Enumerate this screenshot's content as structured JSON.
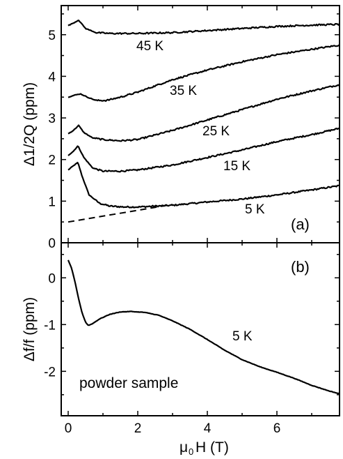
{
  "chart_data": [
    {
      "panel": "(a)",
      "type": "line",
      "xlabel": "",
      "ylabel": "Δ1/2Q (ppm)",
      "xlim": [
        -0.2,
        7.8
      ],
      "ylim": [
        0,
        5.7
      ],
      "x_ticks": [
        0,
        2,
        4,
        6
      ],
      "y_ticks": [
        0,
        1,
        2,
        3,
        4,
        5
      ],
      "series": [
        {
          "name": "5 K",
          "x": [
            0,
            0.15,
            0.28,
            0.4,
            0.6,
            0.9,
            1.2,
            1.6,
            2,
            3,
            4,
            5,
            6,
            7,
            7.8
          ],
          "y": [
            1.75,
            1.85,
            1.93,
            1.6,
            1.15,
            0.95,
            0.88,
            0.86,
            0.86,
            0.9,
            0.98,
            1.05,
            1.15,
            1.27,
            1.37
          ]
        },
        {
          "name": "15 K",
          "x": [
            0,
            0.15,
            0.28,
            0.45,
            0.7,
            1,
            1.5,
            2,
            3,
            4,
            5,
            6,
            7,
            7.8
          ],
          "y": [
            2.1,
            2.2,
            2.33,
            2.05,
            1.8,
            1.72,
            1.72,
            1.75,
            1.87,
            2.05,
            2.23,
            2.43,
            2.6,
            2.75
          ]
        },
        {
          "name": "25 K",
          "x": [
            0,
            0.15,
            0.3,
            0.45,
            0.7,
            1,
            1.5,
            2,
            3,
            4,
            5,
            6,
            7,
            7.8
          ],
          "y": [
            2.62,
            2.7,
            2.82,
            2.65,
            2.52,
            2.48,
            2.45,
            2.48,
            2.7,
            2.95,
            3.2,
            3.45,
            3.65,
            3.8
          ]
        },
        {
          "name": "35 K",
          "x": [
            0,
            0.2,
            0.35,
            0.55,
            0.8,
            1.1,
            1.5,
            2,
            3,
            4,
            5,
            6,
            7,
            7.8
          ],
          "y": [
            3.5,
            3.55,
            3.58,
            3.5,
            3.42,
            3.42,
            3.5,
            3.62,
            3.92,
            4.15,
            4.35,
            4.52,
            4.65,
            4.75
          ]
        },
        {
          "name": "45 K",
          "x": [
            0,
            0.15,
            0.3,
            0.5,
            0.8,
            1.2,
            2,
            3,
            4,
            5,
            6,
            7,
            7.8
          ],
          "y": [
            5.22,
            5.28,
            5.35,
            5.15,
            5.05,
            5.03,
            5.03,
            5.05,
            5.1,
            5.15,
            5.2,
            5.23,
            5.25
          ]
        },
        {
          "name": "",
          "style": "dashed",
          "x": [
            0,
            3
          ],
          "y": [
            0.5,
            0.92
          ]
        }
      ],
      "annotations": [
        "(a)"
      ]
    },
    {
      "panel": "(b)",
      "type": "line",
      "xlabel": "μ₀H (T)",
      "ylabel": "Δf/f (ppm)",
      "xlim": [
        -0.2,
        7.8
      ],
      "ylim": [
        -2.95,
        0.75
      ],
      "x_ticks": [
        0,
        2,
        4,
        6
      ],
      "y_ticks": [
        0,
        -1,
        -2
      ],
      "series": [
        {
          "name": "5 K",
          "x": [
            0,
            0.1,
            0.2,
            0.3,
            0.4,
            0.5,
            0.58,
            0.7,
            0.9,
            1.2,
            1.5,
            1.8,
            2.2,
            2.6,
            3,
            3.5,
            4,
            4.5,
            5,
            5.5,
            6,
            6.5,
            7,
            7.5,
            7.8
          ],
          "y": [
            0.38,
            0.2,
            -0.1,
            -0.45,
            -0.75,
            -0.95,
            -1.02,
            -0.98,
            -0.88,
            -0.78,
            -0.73,
            -0.72,
            -0.74,
            -0.8,
            -0.92,
            -1.1,
            -1.32,
            -1.55,
            -1.75,
            -1.9,
            -2.02,
            -2.15,
            -2.3,
            -2.42,
            -2.48
          ]
        }
      ],
      "annotations": [
        "(b)",
        "powder sample"
      ]
    }
  ],
  "labels": {
    "panel_a": "(a)",
    "panel_b": "(b)",
    "curve_5k_a": "5 K",
    "curve_15k": "15 K",
    "curve_25k": "25 K",
    "curve_35k": "35 K",
    "curve_45k": "45 K",
    "curve_5k_b": "5 K",
    "powder": "powder sample",
    "ylabel_a": "Δ1/2Q (ppm)",
    "ylabel_b": "Δf/f (ppm)",
    "xlabel_mu": "μ",
    "xlabel_sub": "0",
    "xlabel_rest": "H (T)"
  }
}
